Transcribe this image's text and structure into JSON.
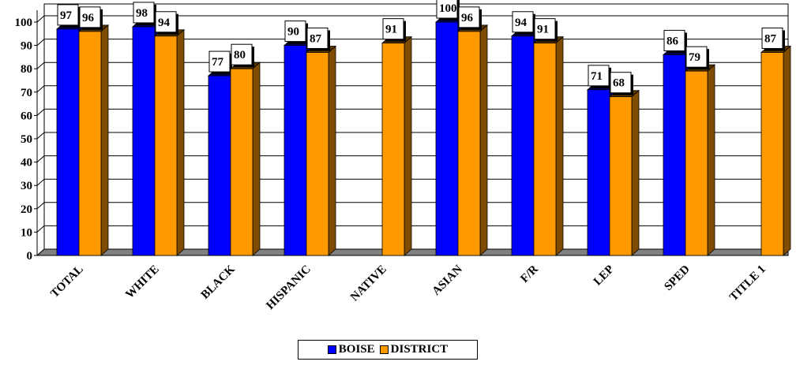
{
  "chart_data": {
    "type": "bar",
    "categories": [
      "TOTAL",
      "WHITE",
      "BLACK",
      "HISPANIC",
      "NATIVE",
      "ASIAN",
      "F/R",
      "LEP",
      "SPED",
      "TITLE 1"
    ],
    "series": [
      {
        "name": "BOISE",
        "color": "#0000ff",
        "values": [
          97,
          98,
          77,
          90,
          null,
          100,
          94,
          71,
          86,
          null
        ]
      },
      {
        "name": "DISTRICT",
        "color": "#ff9900",
        "values": [
          96,
          94,
          80,
          87,
          91,
          96,
          91,
          68,
          79,
          87
        ]
      }
    ],
    "data_labels": {
      "BOISE": [
        "97",
        "98",
        "77",
        "90",
        "",
        "100",
        "94",
        "71",
        "86",
        ""
      ],
      "DISTRICT": [
        "96",
        "94",
        "80",
        "87",
        "91",
        "96",
        "91",
        "68",
        "79",
        "87"
      ]
    },
    "yticks": [
      "0",
      "10",
      "20",
      "30",
      "40",
      "50",
      "60",
      "70",
      "80",
      "90",
      "100"
    ],
    "ylim": [
      0,
      100
    ],
    "grid": true,
    "legend_position": "bottom",
    "title": "",
    "xlabel": "",
    "ylabel": ""
  }
}
